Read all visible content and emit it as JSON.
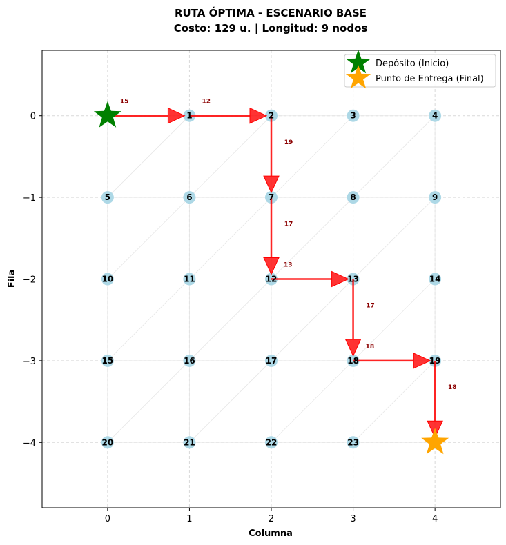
{
  "chart_data": {
    "type": "scatter",
    "title_line1": "RUTA ÓPTIMA - ESCENARIO BASE",
    "title_line2": "Costo: 129 u. | Longitud: 9 nodos",
    "xlabel": "Columna",
    "ylabel": "Fila",
    "xlim": [
      -0.8,
      4.8
    ],
    "ylim": [
      -4.8,
      0.8
    ],
    "x_ticks": [
      0,
      1,
      2,
      3,
      4
    ],
    "x_tick_labels": [
      "0",
      "1",
      "2",
      "3",
      "4"
    ],
    "y_ticks": [
      0,
      -1,
      -2,
      -3,
      -4
    ],
    "y_tick_labels": [
      "0",
      "−1",
      "−2",
      "−3",
      "−4"
    ],
    "grid": true,
    "legend_position": "top-right",
    "colors": {
      "node": "#add8e6",
      "route": "#ff0000",
      "cost_label": "#8b0000",
      "start": "#008000",
      "end": "#ffa500",
      "grid": "#d9d9d9",
      "edge": "#e6e6e6"
    },
    "nodes": [
      {
        "id": "0",
        "x": 0,
        "y": 0
      },
      {
        "id": "1",
        "x": 1,
        "y": 0
      },
      {
        "id": "2",
        "x": 2,
        "y": 0
      },
      {
        "id": "3",
        "x": 3,
        "y": 0
      },
      {
        "id": "4",
        "x": 4,
        "y": 0
      },
      {
        "id": "5",
        "x": 0,
        "y": -1
      },
      {
        "id": "6",
        "x": 1,
        "y": -1
      },
      {
        "id": "7",
        "x": 2,
        "y": -1
      },
      {
        "id": "8",
        "x": 3,
        "y": -1
      },
      {
        "id": "9",
        "x": 4,
        "y": -1
      },
      {
        "id": "10",
        "x": 0,
        "y": -2
      },
      {
        "id": "11",
        "x": 1,
        "y": -2
      },
      {
        "id": "12",
        "x": 2,
        "y": -2
      },
      {
        "id": "13",
        "x": 3,
        "y": -2
      },
      {
        "id": "14",
        "x": 4,
        "y": -2
      },
      {
        "id": "15",
        "x": 0,
        "y": -3
      },
      {
        "id": "16",
        "x": 1,
        "y": -3
      },
      {
        "id": "17",
        "x": 2,
        "y": -3
      },
      {
        "id": "18",
        "x": 3,
        "y": -3
      },
      {
        "id": "19",
        "x": 4,
        "y": -3
      },
      {
        "id": "20",
        "x": 0,
        "y": -4
      },
      {
        "id": "21",
        "x": 1,
        "y": -4
      },
      {
        "id": "22",
        "x": 2,
        "y": -4
      },
      {
        "id": "23",
        "x": 3,
        "y": -4
      },
      {
        "id": "24",
        "x": 4,
        "y": -4
      }
    ],
    "route": [
      {
        "from": [
          0,
          0
        ],
        "to": [
          1,
          0
        ],
        "cost": "15"
      },
      {
        "from": [
          1,
          0
        ],
        "to": [
          2,
          0
        ],
        "cost": "12"
      },
      {
        "from": [
          2,
          0
        ],
        "to": [
          2,
          -1
        ],
        "cost": "19"
      },
      {
        "from": [
          2,
          -1
        ],
        "to": [
          2,
          -2
        ],
        "cost": "17"
      },
      {
        "from": [
          2,
          -2
        ],
        "to": [
          3,
          -2
        ],
        "cost": "13"
      },
      {
        "from": [
          3,
          -2
        ],
        "to": [
          3,
          -3
        ],
        "cost": "17"
      },
      {
        "from": [
          3,
          -3
        ],
        "to": [
          4,
          -3
        ],
        "cost": "18"
      },
      {
        "from": [
          4,
          -3
        ],
        "to": [
          4,
          -4
        ],
        "cost": "18"
      }
    ],
    "start": {
      "x": 0,
      "y": 0
    },
    "end": {
      "x": 4,
      "y": -4
    },
    "legend": [
      {
        "label": "Depósito (Inicio)",
        "marker": "star",
        "color": "#008000"
      },
      {
        "label": "Punto de Entrega (Final)",
        "marker": "star",
        "color": "#ffa500"
      }
    ]
  }
}
